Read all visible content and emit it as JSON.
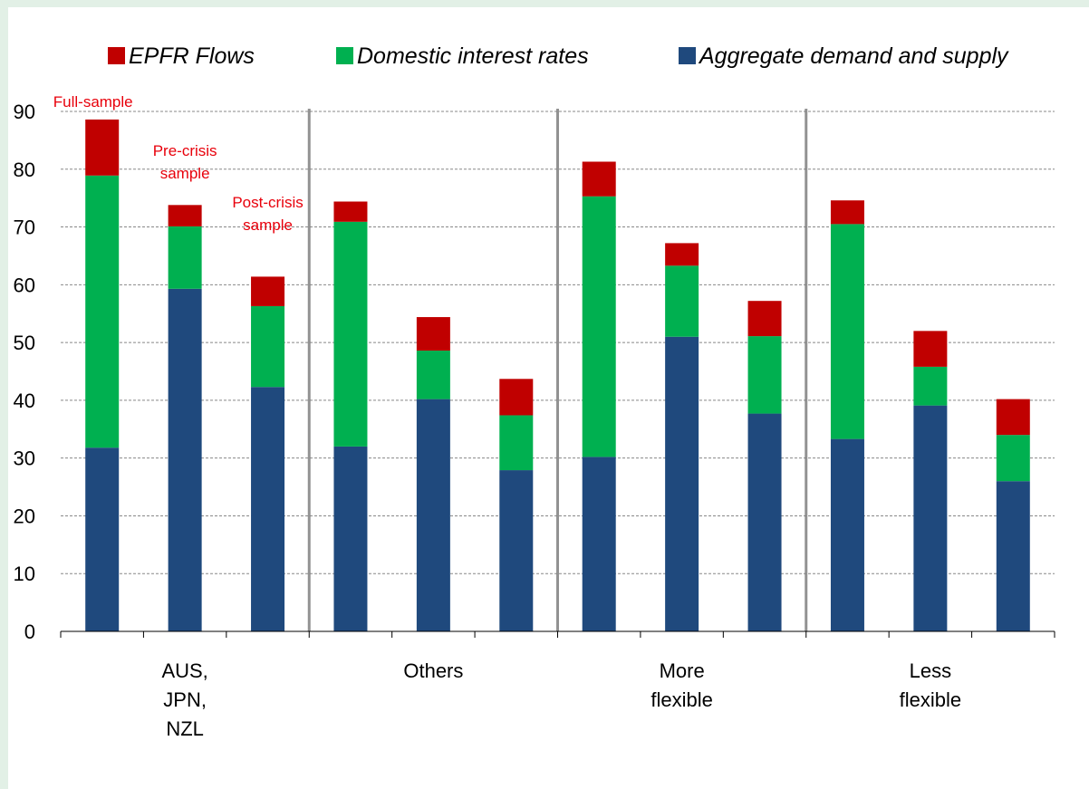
{
  "chart_data": {
    "type": "bar",
    "stacked": true,
    "title": "",
    "xlabel": "",
    "ylabel": "",
    "ylim": [
      0,
      90
    ],
    "yticks": [
      0,
      10,
      20,
      30,
      40,
      50,
      60,
      70,
      80,
      90
    ],
    "grid": "horizontal dashed",
    "legend_position": "top",
    "groups": [
      {
        "label": [
          "AUS,",
          "JPN,",
          "NZL"
        ],
        "bars": 3
      },
      {
        "label": [
          "Others"
        ],
        "bars": 3
      },
      {
        "label": [
          "More",
          "flexible"
        ],
        "bars": 3
      },
      {
        "label": [
          "Less",
          "flexible"
        ],
        "bars": 3
      }
    ],
    "series": [
      {
        "name": "Aggregate demand and supply",
        "color": "#1f497d",
        "values": [
          31.8,
          59.3,
          42.3,
          32.0,
          40.2,
          27.9,
          30.2,
          51.0,
          37.7,
          33.3,
          39.1,
          26.0
        ]
      },
      {
        "name": "Domestic interest rates",
        "color": "#00b050",
        "values": [
          47.1,
          10.8,
          14.0,
          38.9,
          8.4,
          9.5,
          45.1,
          12.3,
          13.4,
          37.2,
          6.7,
          8.0
        ]
      },
      {
        "name": "EPFR Flows",
        "color": "#c00000",
        "values": [
          9.7,
          3.7,
          5.1,
          3.5,
          5.8,
          6.3,
          6.0,
          3.9,
          6.1,
          4.1,
          6.2,
          6.2
        ]
      }
    ],
    "legend_order": [
      "EPFR Flows",
      "Domestic interest rates",
      "Aggregate demand and supply"
    ],
    "annotations": [
      {
        "bar": 0,
        "lines": [
          "Full-sample"
        ]
      },
      {
        "bar": 1,
        "lines": [
          "Pre-crisis",
          "sample"
        ]
      },
      {
        "bar": 2,
        "lines": [
          "Post-crisis",
          "sample"
        ]
      }
    ],
    "annotation_color": "#e8000b"
  }
}
